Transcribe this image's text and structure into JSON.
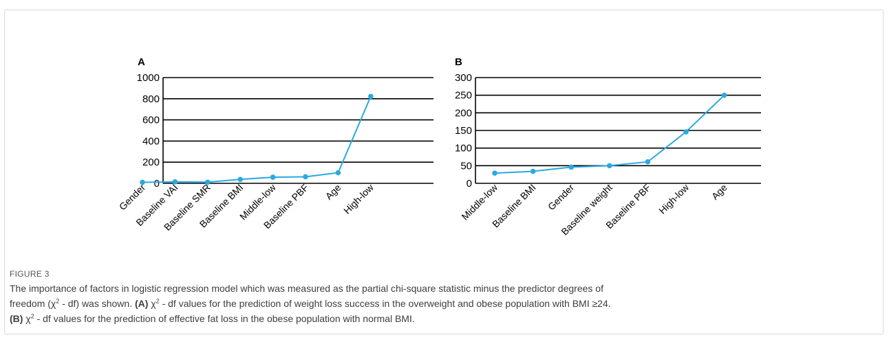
{
  "figure": {
    "label": "FIGURE 3",
    "caption": {
      "line1": "The importance of factors in logistic regression model which was measured as the partial chi-square statistic minus the predictor degrees of",
      "line2_pre": "freedom (χ",
      "line2_post": " - df) was shown. ",
      "a_tag": "(A)",
      "a_chi": " χ",
      "a_text": " - df values for the prediction of weight loss success in the overweight and obese population with BMI ≥24.",
      "b_tag": "(B)",
      "b_chi": " χ",
      "b_text": " - df values for the prediction of effective fat loss in the obese population with normal BMI.",
      "sup": "2"
    }
  },
  "colors": {
    "line": "#29a9e0",
    "axis": "#000000"
  },
  "chart_data": [
    {
      "panel": "A",
      "type": "line",
      "categories": [
        "Gender",
        "Baseline VAI",
        "Baseline SMR",
        "Baseline BMI",
        "Middle-low",
        "Baseline PBF",
        "Age",
        "High-low"
      ],
      "values": [
        10,
        14,
        11,
        37,
        58,
        62,
        100,
        822
      ],
      "ylim": [
        0,
        1000
      ],
      "yticks": [
        0,
        200,
        400,
        600,
        800,
        1000
      ],
      "ytick_labels": [
        "0",
        "200",
        "400",
        "600",
        "800",
        "1000"
      ],
      "grid": true
    },
    {
      "panel": "B",
      "type": "line",
      "categories": [
        "Middle-low",
        "Baseline BMI",
        "Gender",
        "Baseline weight",
        "Baseline PBF",
        "High-low",
        "Age"
      ],
      "values": [
        29,
        34,
        46,
        50,
        61,
        146,
        250
      ],
      "ylim": [
        0,
        300
      ],
      "yticks": [
        0,
        50,
        100,
        150,
        200,
        250,
        300
      ],
      "ytick_labels": [
        "0",
        "50",
        "100",
        "150",
        "200",
        "250",
        "300"
      ],
      "grid": true
    }
  ]
}
